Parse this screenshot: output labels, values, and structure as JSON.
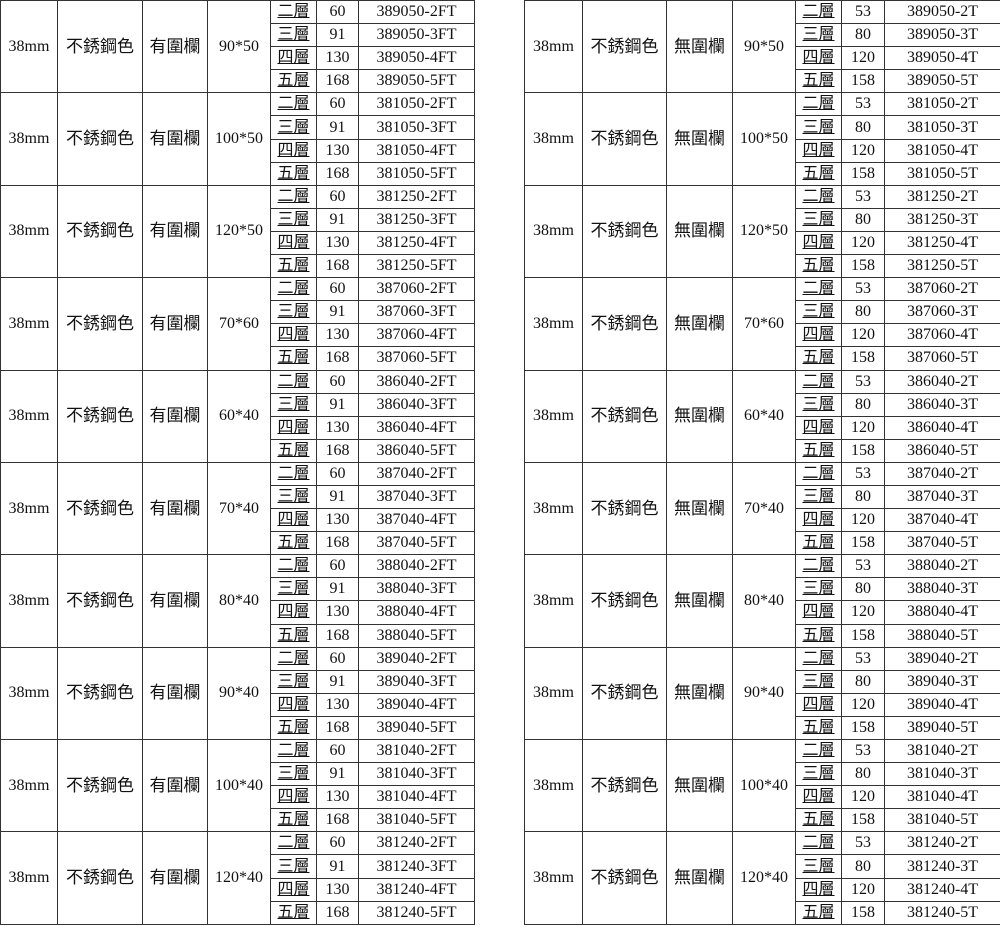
{
  "levels": [
    "二層",
    "三層",
    "四層",
    "五層"
  ],
  "tables": [
    {
      "diameter": "38mm",
      "color": "不銹鋼色",
      "rail": "有圍欄",
      "heights": [
        "60",
        "91",
        "130",
        "168"
      ],
      "groups": [
        {
          "size": "90*50",
          "codes": [
            "389050-2FT",
            "389050-3FT",
            "389050-4FT",
            "389050-5FT"
          ]
        },
        {
          "size": "100*50",
          "codes": [
            "381050-2FT",
            "381050-3FT",
            "381050-4FT",
            "381050-5FT"
          ]
        },
        {
          "size": "120*50",
          "codes": [
            "381250-2FT",
            "381250-3FT",
            "381250-4FT",
            "381250-5FT"
          ]
        },
        {
          "size": "70*60",
          "codes": [
            "387060-2FT",
            "387060-3FT",
            "387060-4FT",
            "387060-5FT"
          ]
        },
        {
          "size": "60*40",
          "codes": [
            "386040-2FT",
            "386040-3FT",
            "386040-4FT",
            "386040-5FT"
          ]
        },
        {
          "size": "70*40",
          "codes": [
            "387040-2FT",
            "387040-3FT",
            "387040-4FT",
            "387040-5FT"
          ]
        },
        {
          "size": "80*40",
          "codes": [
            "388040-2FT",
            "388040-3FT",
            "388040-4FT",
            "388040-5FT"
          ]
        },
        {
          "size": "90*40",
          "codes": [
            "389040-2FT",
            "389040-3FT",
            "389040-4FT",
            "389040-5FT"
          ]
        },
        {
          "size": "100*40",
          "codes": [
            "381040-2FT",
            "381040-3FT",
            "381040-4FT",
            "381040-5FT"
          ]
        },
        {
          "size": "120*40",
          "codes": [
            "381240-2FT",
            "381240-3FT",
            "381240-4FT",
            "381240-5FT"
          ]
        }
      ]
    },
    {
      "diameter": "38mm",
      "color": "不銹鋼色",
      "rail": "無圍欄",
      "heights": [
        "53",
        "80",
        "120",
        "158"
      ],
      "groups": [
        {
          "size": "90*50",
          "codes": [
            "389050-2T",
            "389050-3T",
            "389050-4T",
            "389050-5T"
          ]
        },
        {
          "size": "100*50",
          "codes": [
            "381050-2T",
            "381050-3T",
            "381050-4T",
            "381050-5T"
          ]
        },
        {
          "size": "120*50",
          "codes": [
            "381250-2T",
            "381250-3T",
            "381250-4T",
            "381250-5T"
          ]
        },
        {
          "size": "70*60",
          "codes": [
            "387060-2T",
            "387060-3T",
            "387060-4T",
            "387060-5T"
          ]
        },
        {
          "size": "60*40",
          "codes": [
            "386040-2T",
            "386040-3T",
            "386040-4T",
            "386040-5T"
          ]
        },
        {
          "size": "70*40",
          "codes": [
            "387040-2T",
            "387040-3T",
            "387040-4T",
            "387040-5T"
          ]
        },
        {
          "size": "80*40",
          "codes": [
            "388040-2T",
            "388040-3T",
            "388040-4T",
            "388040-5T"
          ]
        },
        {
          "size": "90*40",
          "codes": [
            "389040-2T",
            "389040-3T",
            "389040-4T",
            "389040-5T"
          ]
        },
        {
          "size": "100*40",
          "codes": [
            "381040-2T",
            "381040-3T",
            "381040-4T",
            "381040-5T"
          ]
        },
        {
          "size": "120*40",
          "codes": [
            "381240-2T",
            "381240-3T",
            "381240-4T",
            "381240-5T"
          ]
        }
      ]
    }
  ]
}
